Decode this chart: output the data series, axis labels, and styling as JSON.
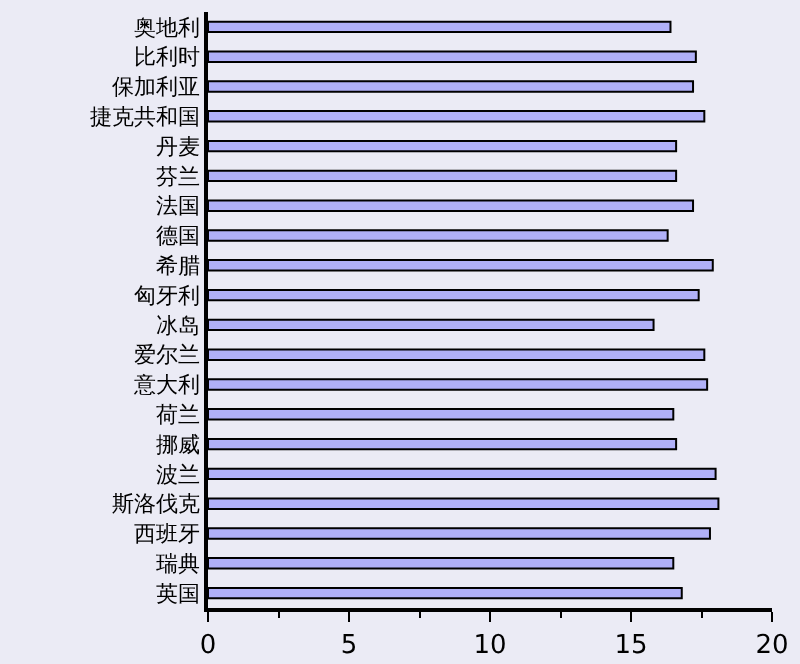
{
  "chart_data": {
    "type": "bar",
    "orientation": "horizontal",
    "categories": [
      "奥地利",
      "比利时",
      "保加利亚",
      "捷克共和国",
      "丹麦",
      "芬兰",
      "法国",
      "德国",
      "希腊",
      "匈牙利",
      "冰岛",
      "爱尔兰",
      "意大利",
      "荷兰",
      "挪威",
      "波兰",
      "斯洛伐克",
      "西班牙",
      "瑞典",
      "英国"
    ],
    "values": [
      16.4,
      17.3,
      17.2,
      17.6,
      16.6,
      16.6,
      17.2,
      16.3,
      17.9,
      17.4,
      15.8,
      17.6,
      17.7,
      16.5,
      16.6,
      18.0,
      18.1,
      17.8,
      16.5,
      16.8
    ],
    "color": "#b0b0f8",
    "xlim": [
      0,
      20
    ],
    "xticks": [
      0,
      5,
      10,
      15,
      20
    ],
    "grid": false,
    "legend": false
  }
}
